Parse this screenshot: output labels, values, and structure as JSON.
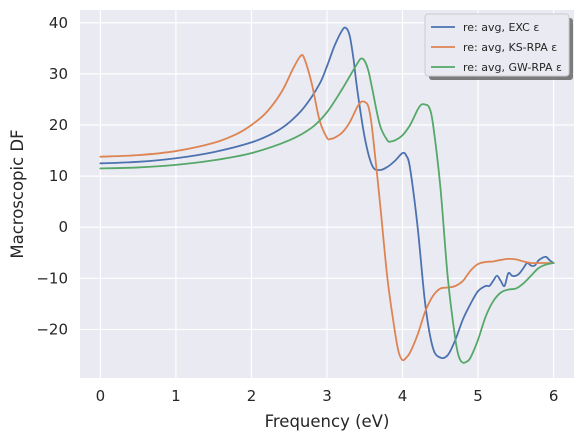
{
  "chart_data": {
    "type": "line",
    "title": "",
    "xlabel": "Frequency (eV)",
    "ylabel": "Macroscopic DF",
    "xlim": [
      -0.27,
      6.27
    ],
    "ylim": [
      -29.5,
      42.5
    ],
    "xticks": [
      0,
      1,
      2,
      3,
      4,
      5,
      6
    ],
    "yticks": [
      -20,
      -10,
      0,
      10,
      20,
      30,
      40
    ],
    "xtick_labels": [
      "0",
      "1",
      "2",
      "3",
      "4",
      "5",
      "6"
    ],
    "ytick_labels": [
      "−20",
      "−10",
      "0",
      "10",
      "20",
      "30",
      "40"
    ],
    "grid": true,
    "legend_position": "top-right",
    "series": [
      {
        "name": "re: avg, EXC ε",
        "color": "#4c72b0",
        "x": [
          0,
          0.5,
          1.0,
          1.5,
          2.0,
          2.3,
          2.5,
          2.7,
          2.9,
          3.0,
          3.1,
          3.2,
          3.25,
          3.3,
          3.35,
          3.4,
          3.5,
          3.6,
          3.7,
          3.8,
          3.9,
          4.0,
          4.05,
          4.1,
          4.2,
          4.3,
          4.4,
          4.5,
          4.6,
          4.7,
          4.8,
          4.9,
          5.0,
          5.1,
          5.15,
          5.2,
          5.25,
          5.3,
          5.35,
          5.4,
          5.45,
          5.5,
          5.55,
          5.6,
          5.65,
          5.7,
          5.75,
          5.8,
          5.85,
          5.9,
          5.95,
          6.0
        ],
        "y": [
          12.5,
          12.8,
          13.5,
          14.7,
          16.6,
          18.5,
          20.5,
          23.5,
          28.0,
          31.5,
          35.5,
          38.5,
          39.0,
          37.5,
          33.0,
          27.0,
          17.5,
          12.0,
          11.2,
          11.8,
          13.0,
          14.5,
          14.0,
          11.5,
          0.0,
          -15.0,
          -23.5,
          -25.5,
          -25.0,
          -22.0,
          -18.0,
          -15.0,
          -12.5,
          -11.5,
          -11.5,
          -10.5,
          -9.5,
          -10.5,
          -11.5,
          -9.0,
          -9.5,
          -9.5,
          -9.0,
          -8.0,
          -7.0,
          -7.5,
          -7.5,
          -6.5,
          -6.0,
          -5.8,
          -6.5,
          -7.0
        ]
      },
      {
        "name": "re: avg, KS-RPA ε",
        "color": "#dd8452",
        "x": [
          0,
          0.5,
          1.0,
          1.5,
          1.8,
          2.0,
          2.2,
          2.4,
          2.55,
          2.65,
          2.7,
          2.8,
          2.9,
          3.0,
          3.05,
          3.1,
          3.2,
          3.3,
          3.4,
          3.45,
          3.5,
          3.55,
          3.6,
          3.7,
          3.8,
          3.9,
          3.95,
          4.0,
          4.05,
          4.1,
          4.2,
          4.3,
          4.4,
          4.5,
          4.6,
          4.7,
          4.8,
          4.9,
          5.0,
          5.1,
          5.2,
          5.3,
          5.4,
          5.5,
          5.6,
          5.7,
          5.8,
          5.9,
          6.0
        ],
        "y": [
          13.8,
          14.1,
          14.9,
          16.5,
          18.2,
          20.0,
          22.5,
          26.5,
          31.0,
          33.5,
          33.0,
          28.0,
          21.0,
          17.5,
          17.3,
          17.5,
          18.5,
          20.5,
          23.5,
          24.5,
          24.5,
          23.5,
          19.0,
          5.0,
          -10.0,
          -20.5,
          -24.5,
          -26.0,
          -25.5,
          -24.5,
          -21.0,
          -16.5,
          -13.5,
          -12.0,
          -11.8,
          -11.5,
          -10.5,
          -8.5,
          -7.2,
          -6.8,
          -6.7,
          -6.4,
          -6.2,
          -6.3,
          -6.7,
          -7.0,
          -7.0,
          -7.0,
          -7.0
        ]
      },
      {
        "name": "re: avg, GW-RPA ε",
        "color": "#55a868",
        "x": [
          0,
          0.5,
          1.0,
          1.5,
          2.0,
          2.5,
          2.8,
          3.0,
          3.2,
          3.3,
          3.4,
          3.45,
          3.5,
          3.55,
          3.6,
          3.7,
          3.8,
          3.85,
          3.9,
          4.0,
          4.1,
          4.2,
          4.25,
          4.3,
          4.35,
          4.4,
          4.5,
          4.6,
          4.7,
          4.75,
          4.8,
          4.85,
          4.9,
          5.0,
          5.1,
          5.2,
          5.3,
          5.4,
          5.5,
          5.6,
          5.7,
          5.8,
          5.9,
          6.0
        ],
        "y": [
          11.5,
          11.7,
          12.2,
          13.1,
          14.5,
          17.0,
          19.5,
          22.5,
          27.0,
          29.5,
          32.0,
          33.0,
          32.5,
          30.5,
          27.0,
          20.0,
          17.0,
          16.8,
          17.0,
          18.0,
          20.0,
          23.0,
          24.0,
          24.0,
          23.5,
          20.5,
          8.0,
          -10.0,
          -22.0,
          -25.5,
          -26.5,
          -26.3,
          -25.5,
          -22.0,
          -17.5,
          -14.5,
          -12.8,
          -12.2,
          -12.0,
          -11.0,
          -9.5,
          -8.0,
          -7.3,
          -7.0
        ]
      }
    ]
  }
}
